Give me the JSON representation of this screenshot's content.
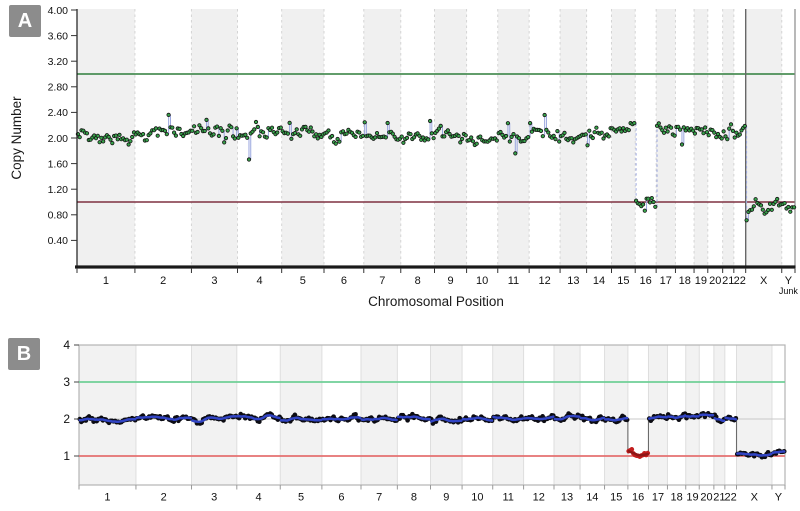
{
  "figure": {
    "background": "#ffffff",
    "panels": {
      "a": {
        "badge": "A"
      },
      "b": {
        "badge": "B"
      }
    }
  },
  "chromosome_weights": [
    249,
    243,
    198,
    190,
    182,
    171,
    159,
    145,
    138,
    134,
    135,
    133,
    114,
    107,
    102,
    90,
    83,
    80,
    59,
    64,
    48,
    51,
    155,
    57
  ],
  "chart_data": [
    {
      "panel": "A",
      "type": "scatter",
      "title": "",
      "ylabel": "Copy Number",
      "xlabel": "Chromosomal Position",
      "ylim": [
        0,
        4.0
      ],
      "ytick_values": [
        4.0,
        3.6,
        3.2,
        2.8,
        2.4,
        2.0,
        1.6,
        1.2,
        0.8,
        0.4
      ],
      "ytick_labels": [
        "4.00",
        "3.60",
        "3.20",
        "2.80",
        "2.40",
        "2.00",
        "1.60",
        "1.20",
        "0.80",
        "0.40"
      ],
      "gain_threshold": 3.0,
      "loss_threshold": 1.0,
      "categories": [
        "1",
        "2",
        "3",
        "4",
        "5",
        "6",
        "7",
        "8",
        "9",
        "10",
        "11",
        "12",
        "13",
        "14",
        "15",
        "16",
        "17",
        "18",
        "19",
        "20",
        "21",
        "22",
        "X",
        "Y"
      ],
      "last_category_sublabel": "Junk",
      "segment_means": [
        2.06,
        2.08,
        2.12,
        2.1,
        2.08,
        2.06,
        2.07,
        2.0,
        2.02,
        2.0,
        2.01,
        2.04,
        2.02,
        2.05,
        2.1,
        1.0,
        2.12,
        2.08,
        2.06,
        2.06,
        2.08,
        2.12,
        0.93,
        0.96
      ],
      "trends": {
        "17": -0.12,
        "22": 0.28
      },
      "grid": "alternating-bands",
      "legend": "none",
      "colors": {
        "point": "#37a34a",
        "point_outline": "#141414",
        "connector": "#9aa6de",
        "gain_line": "#2e7d3a",
        "loss_line": "#7e3040",
        "band": "#f0f0f0",
        "boundary_dash": "#d4d4d4",
        "x_separator": "#676767",
        "axis": "#1a1a1a"
      }
    },
    {
      "panel": "B",
      "type": "scatter",
      "title": "",
      "ylabel": "",
      "xlabel": "",
      "ylim": [
        0.2,
        4.0
      ],
      "ytick_values": [
        4,
        3,
        2,
        1
      ],
      "ytick_labels": [
        "4",
        "3",
        "2",
        "1"
      ],
      "gain_threshold": 3.0,
      "loss_threshold": 1.0,
      "categories": [
        "1",
        "2",
        "3",
        "4",
        "5",
        "6",
        "7",
        "8",
        "9",
        "10",
        "11",
        "12",
        "13",
        "14",
        "15",
        "16",
        "17",
        "18",
        "19",
        "20",
        "21",
        "22",
        "X",
        "Y"
      ],
      "segment_means": [
        1.97,
        2.0,
        2.03,
        2.05,
        1.98,
        2.0,
        2.01,
        2.03,
        2.0,
        2.0,
        2.01,
        2.02,
        2.04,
        2.0,
        2.01,
        1.07,
        2.02,
        2.08,
        2.02,
        2.03,
        2.05,
        2.01,
        1.04,
        1.08
      ],
      "loss_segment_indices": [
        15
      ],
      "grid": "alternating-bands",
      "legend": "none",
      "colors": {
        "point": "#0c0c13",
        "loss_point": "#c21d1d",
        "segment_line": "#3144c4",
        "loss_segment_line": "#8e1616",
        "connector": "#6b6b6b",
        "gain_line": "#6fcf97",
        "loss_line": "#e57070",
        "midline": "#c8c8c8",
        "band": "#f2f2f2",
        "boundary": "#dedede",
        "border": "#b4b4b4"
      }
    }
  ]
}
